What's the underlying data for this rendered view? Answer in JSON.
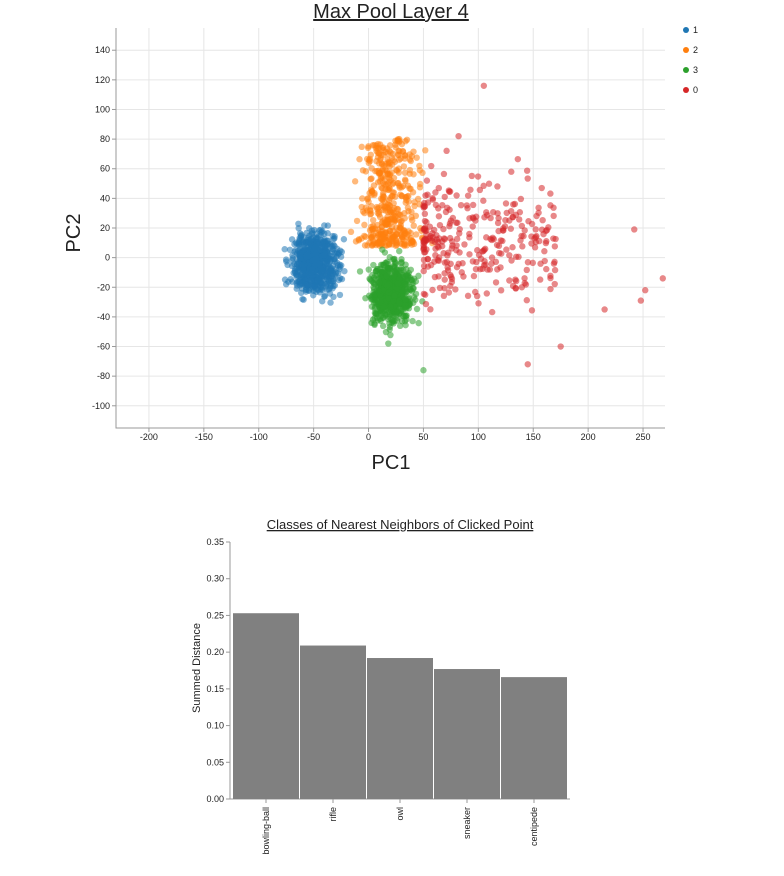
{
  "chart_data": [
    {
      "type": "scatter",
      "title": "Max Pool Layer 4",
      "xlabel": "PC1",
      "ylabel": "PC2",
      "xlim": [
        -230,
        270
      ],
      "ylim": [
        -115,
        155
      ],
      "xticks": [
        -200,
        -150,
        -100,
        -50,
        0,
        50,
        100,
        150,
        200,
        250
      ],
      "yticks": [
        -100,
        -80,
        -60,
        -40,
        -20,
        0,
        20,
        40,
        60,
        80,
        100,
        120,
        140
      ],
      "grid": true,
      "legend_placement": "top-right",
      "legend": [
        {
          "label": "1",
          "color": "#1f77b4"
        },
        {
          "label": "2",
          "color": "#ff7f0e"
        },
        {
          "label": "3",
          "color": "#2ca02c"
        },
        {
          "label": "0",
          "color": "#d62728"
        }
      ],
      "clusters": [
        {
          "name": "1",
          "color": "#1f77b4",
          "x_range": [
            -85,
            -12
          ],
          "y_range": [
            -40,
            32
          ],
          "count": 650
        },
        {
          "name": "2",
          "color": "#ff7f0e",
          "x_range": [
            -25,
            65
          ],
          "y_range": [
            8,
            80
          ],
          "count": 420
        },
        {
          "name": "3",
          "color": "#2ca02c",
          "x_range": [
            -12,
            55
          ],
          "y_range": [
            -60,
            12
          ],
          "count": 650
        },
        {
          "name": "0",
          "color": "#d62728",
          "x_range": [
            50,
            270
          ],
          "y_range": [
            -72,
            115
          ],
          "count": 300
        }
      ],
      "outliers": [
        {
          "series": "0",
          "x": 105,
          "y": 116
        },
        {
          "series": "0",
          "x": 82,
          "y": 82
        },
        {
          "series": "0",
          "x": 242,
          "y": 19
        },
        {
          "series": "0",
          "x": 268,
          "y": -14
        },
        {
          "series": "0",
          "x": 252,
          "y": -22
        },
        {
          "series": "0",
          "x": 248,
          "y": -29
        },
        {
          "series": "0",
          "x": 215,
          "y": -35
        },
        {
          "series": "0",
          "x": 175,
          "y": -60
        },
        {
          "series": "0",
          "x": 145,
          "y": -72
        },
        {
          "series": "0",
          "x": 130,
          "y": 58
        },
        {
          "series": "3",
          "x": 50,
          "y": -76
        },
        {
          "series": "3",
          "x": 18,
          "y": -58
        },
        {
          "series": "2",
          "x": 28,
          "y": 80
        }
      ]
    },
    {
      "type": "bar",
      "title": "Classes of Nearest Neighbors of Clicked Point",
      "xlabel": "",
      "ylabel": "Summed Distance",
      "ylim": [
        0,
        0.35
      ],
      "yticks": [
        "0.00",
        "0.05",
        "0.10",
        "0.15",
        "0.20",
        "0.25",
        "0.30",
        "0.35"
      ],
      "categories": [
        "bowling-ball",
        "rifle",
        "owl",
        "sneaker",
        "centipede"
      ],
      "values": [
        0.253,
        0.209,
        0.192,
        0.177,
        0.166
      ],
      "bar_color": "#808080"
    }
  ]
}
